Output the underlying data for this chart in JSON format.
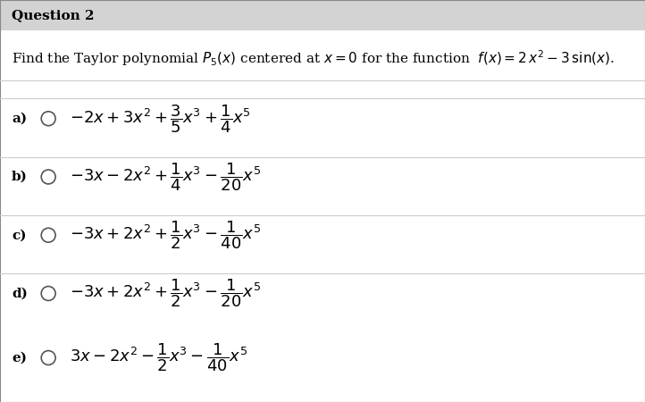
{
  "title": "Question 2",
  "question_text": "Find the Taylor polynomial $P_5(x)$ centered at $x = 0$ for the function  $f(x) = 2\\,x^2 - 3\\,\\sin(x)$.",
  "options": [
    {
      "label": "a)",
      "formula": "$-2x + 3x^2 + \\dfrac{3}{5}x^3 + \\dfrac{1}{4}x^5$"
    },
    {
      "label": "b)",
      "formula": "$-3x - 2x^2 + \\dfrac{1}{4}x^3 - \\dfrac{1}{20}x^5$"
    },
    {
      "label": "c)",
      "formula": "$-3x + 2x^2 + \\dfrac{1}{2}x^3 - \\dfrac{1}{40}x^5$"
    },
    {
      "label": "d)",
      "formula": "$-3x + 2x^2 + \\dfrac{1}{2}x^3 - \\dfrac{1}{20}x^5$"
    },
    {
      "label": "e)",
      "formula": "$3x - 2x^2 - \\dfrac{1}{2}x^3 - \\dfrac{1}{40}x^5$"
    }
  ],
  "header_bg": "#d3d3d3",
  "body_bg": "#ffffff",
  "divider_color": "#cccccc",
  "title_fontsize": 11,
  "question_fontsize": 11,
  "option_fontsize": 13,
  "label_fontsize": 11,
  "text_color": "#000000",
  "header_text_color": "#000000"
}
